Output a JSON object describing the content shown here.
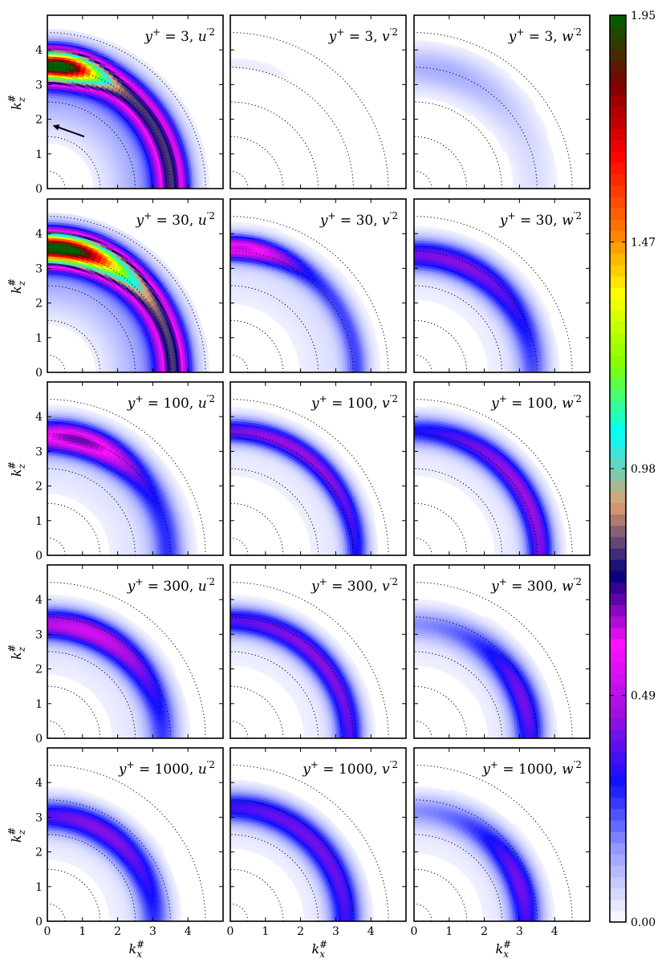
{
  "chart_data": {
    "type": "heatmap",
    "grid": {
      "rows": 5,
      "cols": 3
    },
    "x_axis_label": "k_x^#",
    "y_axis_label": "k_z^#",
    "xlim": [
      0,
      5
    ],
    "ylim": [
      0,
      5
    ],
    "x_ticks": [
      "0",
      "1",
      "2",
      "3",
      "4"
    ],
    "y_ticks": [
      "0",
      "1",
      "2",
      "3",
      "4"
    ],
    "reference_circle_radii": [
      0.5,
      1.5,
      2.5,
      3.5,
      4.5
    ],
    "colorbar": {
      "min": 0.0,
      "max": 1.95,
      "ticks": [
        "0.00",
        "0.49",
        "0.98",
        "1.47",
        "1.95"
      ],
      "colors": [
        "#ffffff",
        "#9aa0ff",
        "#1010ff",
        "#a010e0",
        "#ff10ff",
        "#00007a",
        "#e0a070",
        "#00ffff",
        "#80ff00",
        "#ffff00",
        "#ff7000",
        "#ff0000",
        "#800000",
        "#006000"
      ]
    },
    "panels": [
      {
        "title": "y+ = 3, u'2",
        "yplus": "3",
        "comp": "u",
        "peak_r": 3.55,
        "width": 0.45,
        "peak": 1.95,
        "core_angle": 5,
        "core_spread": 18
      },
      {
        "title": "y+ = 3, v'2",
        "yplus": "3",
        "comp": "v",
        "peak_r": 3.6,
        "width": 0.25,
        "peak": 0.03,
        "core_angle": 8,
        "core_spread": 25
      },
      {
        "title": "y+ = 3, w'2",
        "yplus": "3",
        "comp": "w",
        "peak_r": 3.5,
        "width": 0.6,
        "peak": 0.12,
        "core_angle": 15,
        "core_spread": 40
      },
      {
        "title": "y+ = 30, u'2",
        "yplus": "30",
        "comp": "u",
        "peak_r": 3.6,
        "width": 0.45,
        "peak": 1.95,
        "core_angle": 5,
        "core_spread": 30
      },
      {
        "title": "y+ = 30, v'2",
        "yplus": "30",
        "comp": "v",
        "peak_r": 3.6,
        "width": 0.35,
        "peak": 0.6,
        "core_angle": 5,
        "core_spread": 25
      },
      {
        "title": "y+ = 30, w'2",
        "yplus": "30",
        "comp": "w",
        "peak_r": 3.4,
        "width": 0.45,
        "peak": 0.4,
        "core_angle": 20,
        "core_spread": 60
      },
      {
        "title": "y+ = 100, u'2",
        "yplus": "100",
        "comp": "u",
        "peak_r": 3.45,
        "width": 0.45,
        "peak": 0.65,
        "core_angle": 15,
        "core_spread": 30
      },
      {
        "title": "y+ = 100, v'2",
        "yplus": "100",
        "comp": "v",
        "peak_r": 3.6,
        "width": 0.35,
        "peak": 0.42,
        "core_angle": 30,
        "core_spread": 70
      },
      {
        "title": "y+ = 100, w'2",
        "yplus": "100",
        "comp": "w",
        "peak_r": 3.6,
        "width": 0.4,
        "peak": 0.42,
        "core_angle": 60,
        "core_spread": 70
      },
      {
        "title": "y+ = 300, u'2",
        "yplus": "300",
        "comp": "u",
        "peak_r": 3.3,
        "width": 0.45,
        "peak": 0.5,
        "core_angle": 20,
        "core_spread": 50
      },
      {
        "title": "y+ = 300, v'2",
        "yplus": "300",
        "comp": "v",
        "peak_r": 3.4,
        "width": 0.4,
        "peak": 0.4,
        "core_angle": 45,
        "core_spread": 90
      },
      {
        "title": "y+ = 300, w'2",
        "yplus": "300",
        "comp": "w",
        "peak_r": 3.3,
        "width": 0.45,
        "peak": 0.38,
        "core_angle": 70,
        "core_spread": 40
      },
      {
        "title": "y+ = 1000, u'2",
        "yplus": "1000",
        "comp": "u",
        "peak_r": 3.05,
        "width": 0.45,
        "peak": 0.4,
        "core_angle": 30,
        "core_spread": 60
      },
      {
        "title": "y+ = 1000, v'2",
        "yplus": "1000",
        "comp": "v",
        "peak_r": 3.3,
        "width": 0.45,
        "peak": 0.38,
        "core_angle": 45,
        "core_spread": 90
      },
      {
        "title": "y+ = 1000, w'2",
        "yplus": "1000",
        "comp": "w",
        "peak_r": 3.2,
        "width": 0.45,
        "peak": 0.38,
        "core_angle": 70,
        "core_spread": 40
      }
    ]
  }
}
